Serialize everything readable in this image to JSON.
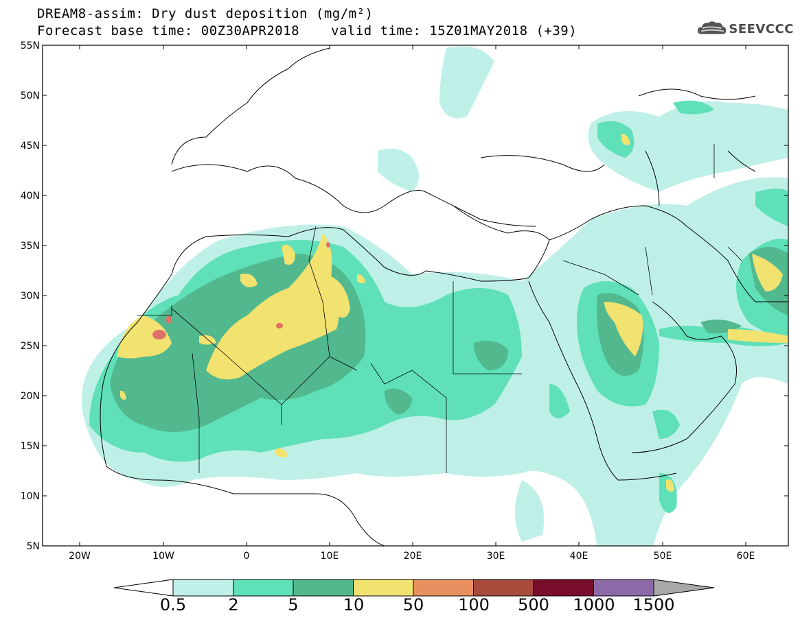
{
  "header": {
    "title_line1": "DREAM8-assim: Dry dust deposition (mg/m²)",
    "title_line2": "Forecast base time: 00Z30APR2018",
    "valid_time": "valid time: 15Z01MAY2018 (+39)",
    "logo_text": "SEEVCCC",
    "logo_icon": "cloud-icon"
  },
  "map": {
    "lat_labels": [
      "55N",
      "50N",
      "45N",
      "40N",
      "35N",
      "30N",
      "25N",
      "20N",
      "15N",
      "10N",
      "5N"
    ],
    "lon_labels": [
      "20W",
      "10W",
      "0",
      "10E",
      "20E",
      "30E",
      "40E",
      "50E",
      "60E"
    ],
    "extent": {
      "lon_min": -25,
      "lon_max": 65,
      "lat_min": 5,
      "lat_max": 55
    },
    "background_color": "#ffffff"
  },
  "colorbar": {
    "labels": [
      "0.5",
      "2",
      "5",
      "10",
      "50",
      "100",
      "500",
      "1000",
      "1500"
    ],
    "colors": [
      "#bff0e8",
      "#5fe0b8",
      "#52b88e",
      "#f2e270",
      "#e89060",
      "#a84a3c",
      "#7a0c2c",
      "#8c6aa8",
      "#a8a8a8"
    ]
  }
}
